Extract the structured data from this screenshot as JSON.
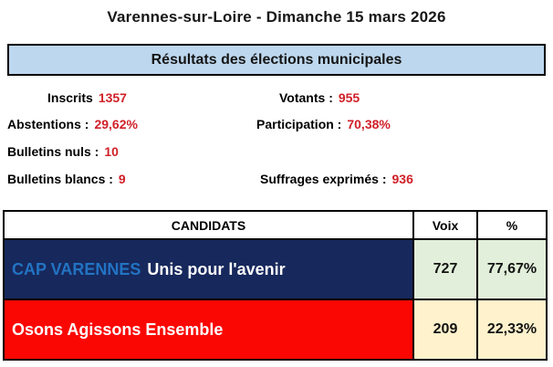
{
  "page": {
    "title": "Varennes-sur-Loire - Dimanche 15 mars 2026",
    "banner": "Résultats des élections municipales"
  },
  "stats": {
    "inscrits": {
      "label": "Inscrits",
      "value": "1357"
    },
    "votants": {
      "label": "Votants :",
      "value": "955"
    },
    "abstentions": {
      "label": "Abstentions :",
      "value": "29,62%"
    },
    "participation": {
      "label": "Participation :",
      "value": "70,38%"
    },
    "bulletins_nuls": {
      "label": "Bulletins nuls :",
      "value": "10"
    },
    "bulletins_blancs": {
      "label": "Bulletins blancs :",
      "value": "9"
    },
    "suffrages_exprimes": {
      "label": "Suffrages exprimés :",
      "value": "936"
    }
  },
  "table": {
    "headers": {
      "candidats": "CANDIDATS",
      "voix": "Voix",
      "pct": "%"
    },
    "rows": [
      {
        "list_name": "CAP VARENNES",
        "slogan": "Unis pour l'avenir",
        "voix": "727",
        "pct": "77,67%"
      },
      {
        "list_name": "Osons Agissons Ensemble",
        "slogan": "",
        "voix": "209",
        "pct": "22,33%"
      }
    ]
  },
  "colors": {
    "banner_bg": "#BDD7EE",
    "value_red": "#D02028",
    "row_cap_bg": "#17285C",
    "row_cap_name": "#2273C3",
    "row_osons_bg": "#FB0703",
    "voix_cap_bg": "#E2EFDA",
    "voix_osons_bg": "#FFF2CC",
    "border": "#000000"
  }
}
